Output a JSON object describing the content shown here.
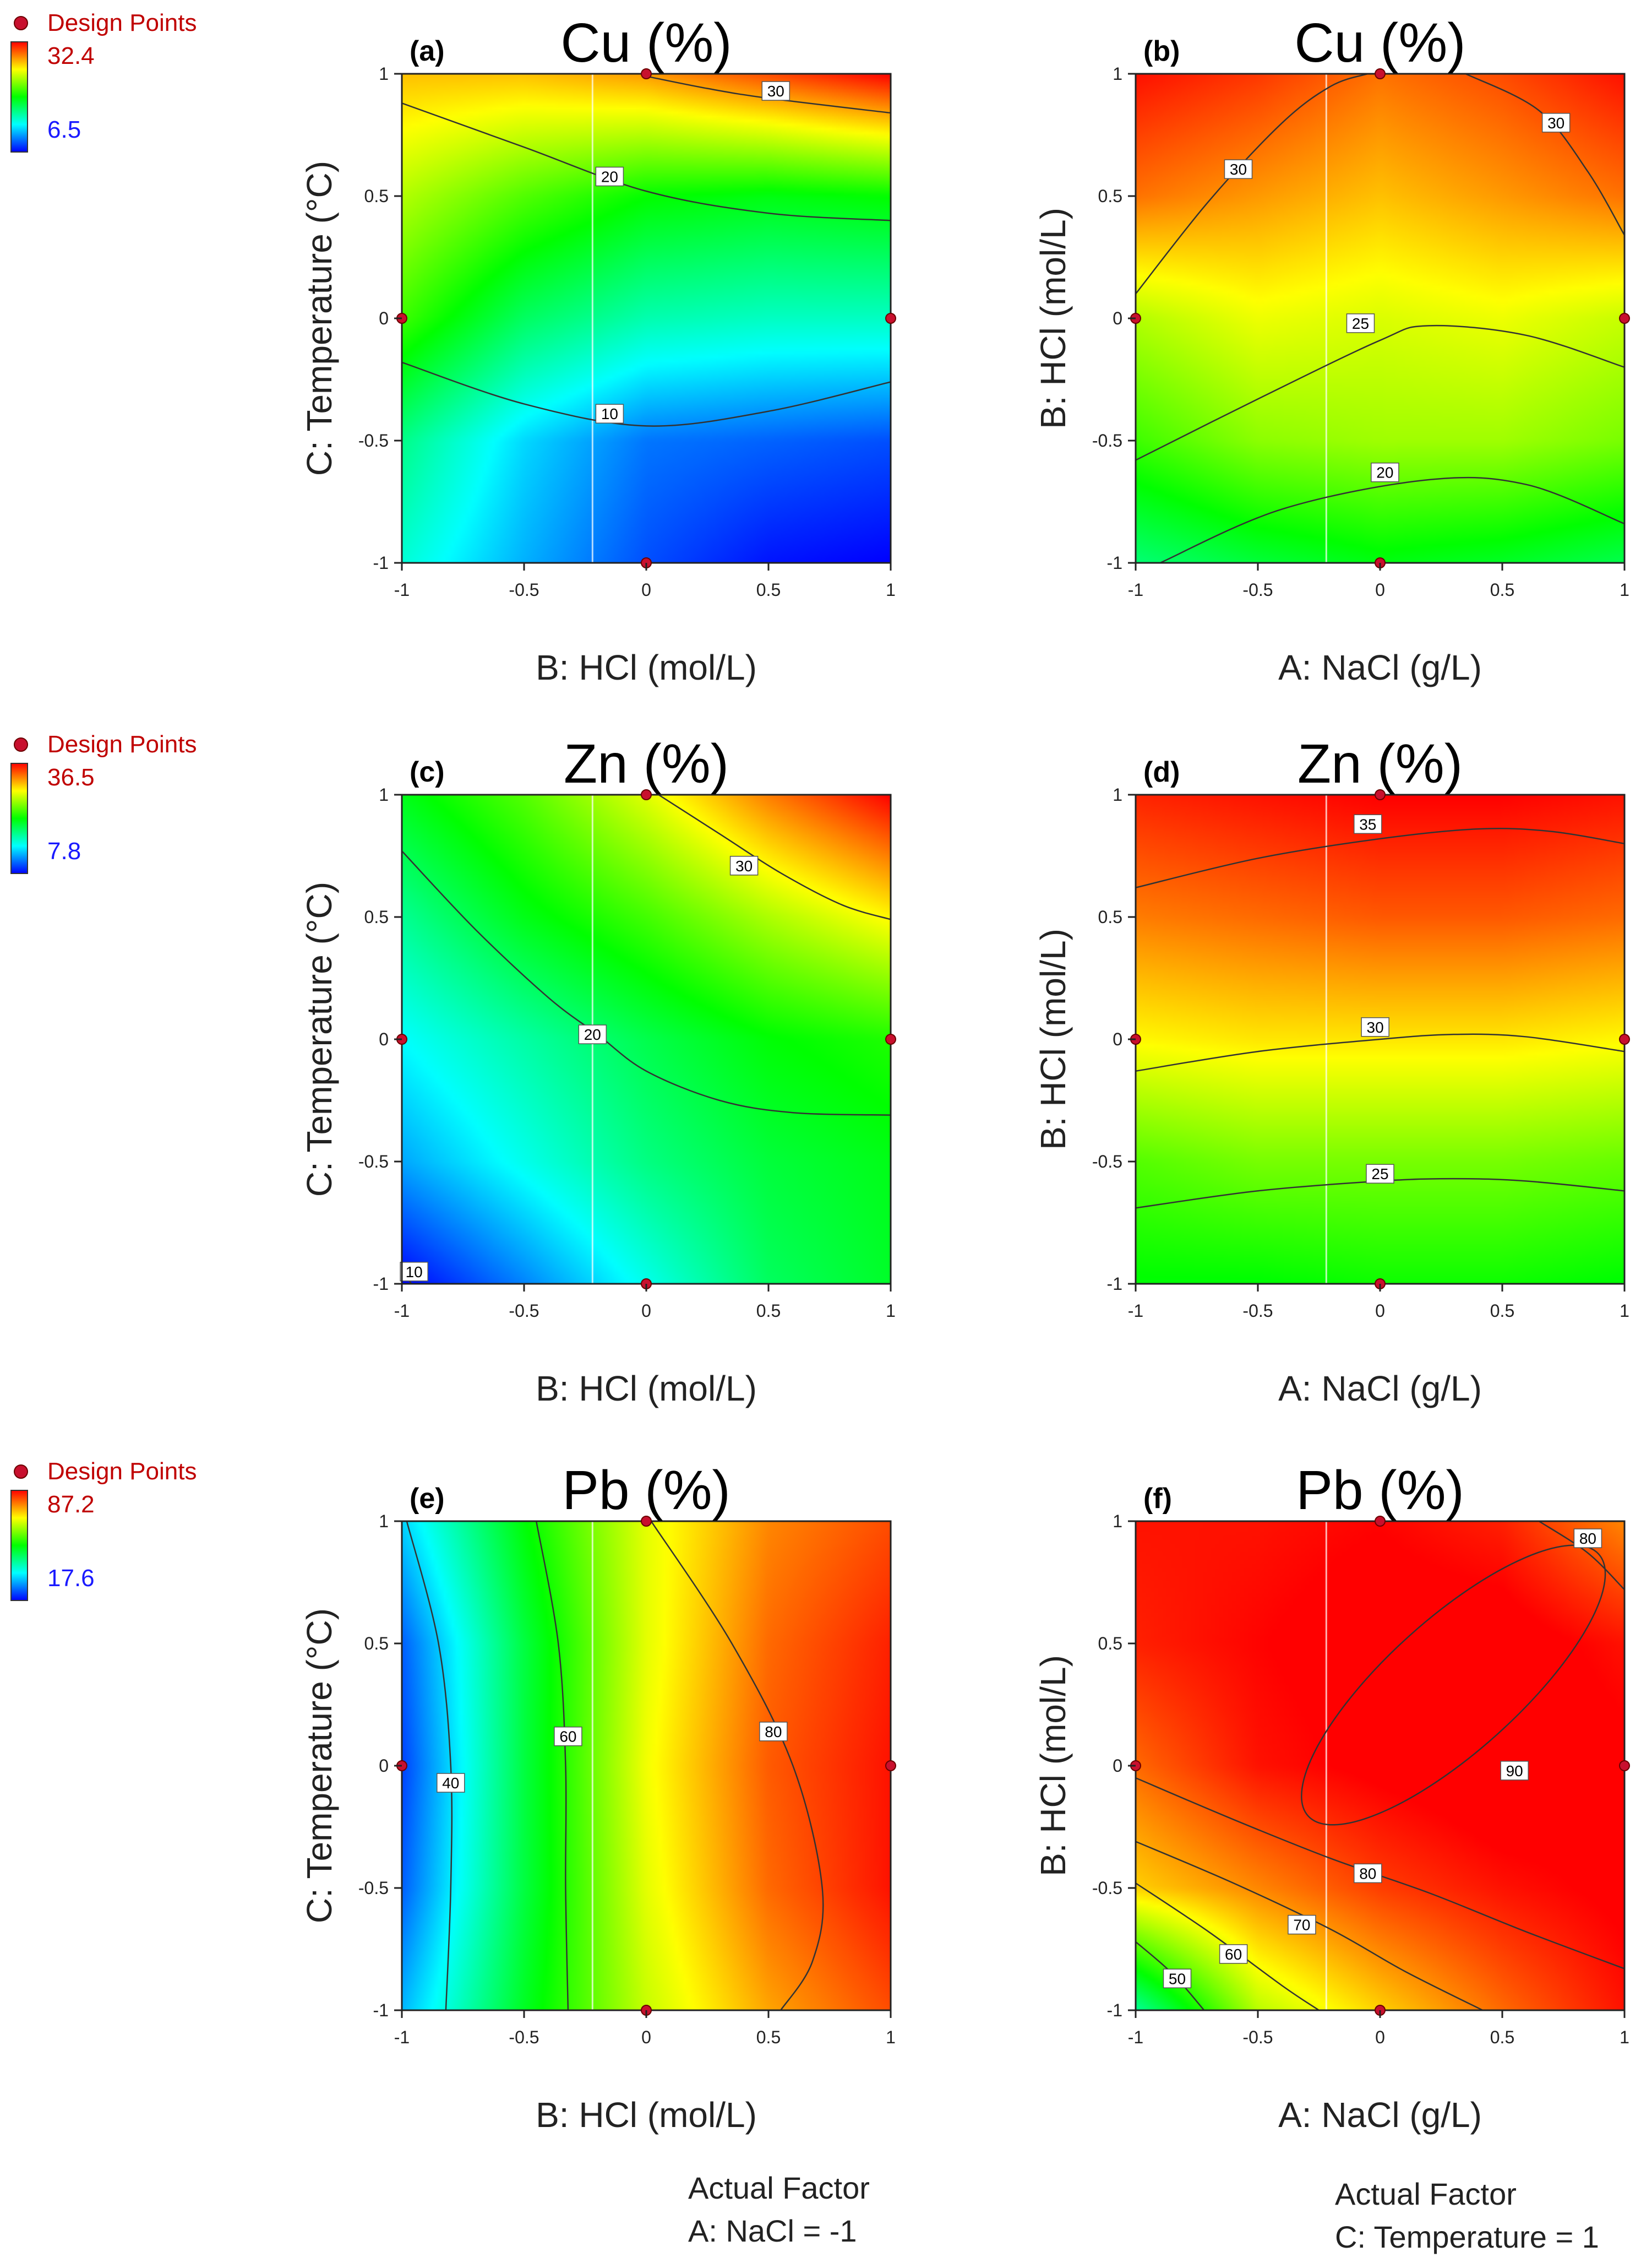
{
  "figure": {
    "footnotes": [
      {
        "line1": "Actual Factor",
        "line2": "A: NaCl = -1"
      },
      {
        "line1": "Actual Factor",
        "line2": "C: Temperature = 1"
      }
    ]
  },
  "legends": [
    {
      "title": "Design Points",
      "max": "32.4",
      "min": "6.5"
    },
    {
      "title": "Design Points",
      "max": "36.5",
      "min": "7.8"
    },
    {
      "title": "Design Points",
      "max": "87.2",
      "min": "17.6"
    }
  ],
  "chart_data": [
    {
      "type": "heatmap",
      "panel": "(a)",
      "title": "Cu (%)",
      "xlabel": "B: HCl (mol/L)",
      "ylabel": "C: Temperature (°C)",
      "xlim": [
        -1,
        1
      ],
      "ylim": [
        -1,
        1
      ],
      "xticks": [
        "-1",
        "-0.5",
        "0",
        "0.5",
        "1"
      ],
      "yticks": [
        "-1",
        "-0.5",
        "0",
        "0.5",
        "1"
      ],
      "color_range": [
        6.5,
        32.4
      ],
      "grid": [
        [
          14.0,
          11.0,
          8.5,
          7.0,
          6.5
        ],
        [
          16.0,
          12.0,
          9.5,
          9.0,
          8.5
        ],
        [
          21.0,
          17.0,
          15.0,
          14.5,
          14.5
        ],
        [
          24.0,
          21.5,
          19.5,
          19.0,
          19.5
        ],
        [
          27.5,
          27.5,
          28.5,
          30.5,
          32.4
        ]
      ],
      "contours": [
        {
          "label": "10",
          "x": [
            -1,
            -0.5,
            0,
            0.5,
            1
          ],
          "y": [
            -0.18,
            -0.35,
            -0.44,
            -0.38,
            -0.26
          ],
          "label_at": [
            -0.15,
            -0.39
          ]
        },
        {
          "label": "20",
          "x": [
            -1,
            -0.5,
            0,
            0.5,
            1
          ],
          "y": [
            0.88,
            0.7,
            0.52,
            0.43,
            0.4
          ],
          "label_at": [
            -0.15,
            0.58
          ]
        },
        {
          "label": "30",
          "x": [
            0,
            0.25,
            0.5,
            1
          ],
          "y": [
            0.99,
            0.94,
            0.9,
            0.84
          ],
          "label_at": [
            0.53,
            0.93
          ]
        }
      ],
      "design_points": [
        [
          0,
          1
        ],
        [
          -1,
          0
        ],
        [
          1,
          0
        ],
        [
          0,
          -1
        ]
      ],
      "marker_x": -0.22
    },
    {
      "type": "heatmap",
      "panel": "(b)",
      "title": "Cu (%)",
      "xlabel": "A: NaCl (g/L)",
      "ylabel": "B: HCl (mol/L)",
      "xlim": [
        -1,
        1
      ],
      "ylim": [
        -1,
        1
      ],
      "xticks": [
        "-1",
        "-0.5",
        "0",
        "0.5",
        "1"
      ],
      "yticks": [
        "-1",
        "-0.5",
        "0",
        "0.5",
        "1"
      ],
      "color_range": [
        6.5,
        32.4
      ],
      "grid": [
        [
          16.5,
          18.0,
          19.0,
          18.5,
          17.5
        ],
        [
          21.0,
          23.0,
          23.5,
          23.5,
          22.5
        ],
        [
          24.0,
          25.5,
          25.0,
          25.5,
          24.5
        ],
        [
          29.5,
          28.5,
          27.5,
          28.5,
          29.5
        ],
        [
          32.0,
          31.0,
          29.5,
          30.5,
          32.0
        ]
      ],
      "contours": [
        {
          "label": "20",
          "x": [
            -0.9,
            -0.4,
            0.2,
            0.6,
            1
          ],
          "y": [
            -1,
            -0.78,
            -0.66,
            -0.68,
            -0.84
          ],
          "label_at": [
            0.02,
            -0.63
          ]
        },
        {
          "label": "25",
          "x": [
            -1,
            -0.5,
            0,
            0.2,
            0.6,
            1
          ],
          "y": [
            -0.58,
            -0.33,
            -0.09,
            -0.03,
            -0.07,
            -0.2
          ],
          "label_at": [
            -0.08,
            -0.02
          ]
        },
        {
          "label": "30",
          "x": [
            -1,
            -0.7,
            -0.4,
            -0.2,
            -0.05
          ],
          "y": [
            0.1,
            0.48,
            0.8,
            0.95,
            1
          ],
          "label_at": [
            -0.58,
            0.61
          ]
        },
        {
          "label": "30",
          "x": [
            0.35,
            0.65,
            0.85,
            1
          ],
          "y": [
            1,
            0.85,
            0.6,
            0.34
          ],
          "label_at": [
            0.72,
            0.8
          ]
        }
      ],
      "design_points": [
        [
          0,
          1
        ],
        [
          -1,
          0
        ],
        [
          1,
          0
        ],
        [
          0,
          -1
        ]
      ],
      "marker_x": -0.22
    },
    {
      "type": "heatmap",
      "panel": "(c)",
      "title": "Zn (%)",
      "xlabel": "B: HCl (mol/L)",
      "ylabel": "C: Temperature (°C)",
      "xlim": [
        -1,
        1
      ],
      "ylim": [
        -1,
        1
      ],
      "xticks": [
        "-1",
        "-0.5",
        "0",
        "0.5",
        "1"
      ],
      "yticks": [
        "-1",
        "-0.5",
        "0",
        "0.5",
        "1"
      ],
      "color_range": [
        7.8,
        36.5
      ],
      "grid": [
        [
          7.8,
          11.5,
          15.5,
          19.5,
          21.0
        ],
        [
          12.5,
          15.5,
          18.5,
          20.5,
          21.5
        ],
        [
          15.0,
          17.5,
          20.0,
          22.0,
          23.0
        ],
        [
          18.0,
          21.5,
          24.0,
          27.0,
          29.5
        ],
        [
          21.5,
          24.5,
          28.5,
          33.0,
          36.5
        ]
      ],
      "contours": [
        {
          "label": "10",
          "x": [
            -1,
            -0.96
          ],
          "y": [
            -0.95,
            -1
          ],
          "label_at": [
            -0.95,
            -0.95
          ]
        },
        {
          "label": "20",
          "x": [
            -1,
            -0.7,
            -0.4,
            -0.2,
            0,
            0.3,
            0.6,
            1
          ],
          "y": [
            0.77,
            0.45,
            0.17,
            0.02,
            -0.13,
            -0.25,
            -0.3,
            -0.31
          ],
          "label_at": [
            -0.22,
            0.02
          ]
        },
        {
          "label": "30",
          "x": [
            0.05,
            0.3,
            0.55,
            0.8,
            1
          ],
          "y": [
            1,
            0.84,
            0.68,
            0.55,
            0.49
          ],
          "label_at": [
            0.4,
            0.71
          ]
        }
      ],
      "design_points": [
        [
          0,
          1
        ],
        [
          -1,
          0
        ],
        [
          1,
          0
        ],
        [
          0,
          -1
        ]
      ],
      "marker_x": -0.22
    },
    {
      "type": "heatmap",
      "panel": "(d)",
      "title": "Zn (%)",
      "xlabel": "A: NaCl (g/L)",
      "ylabel": "B: HCl (mol/L)",
      "xlim": [
        -1,
        1
      ],
      "ylim": [
        -1,
        1
      ],
      "xticks": [
        "-1",
        "-0.5",
        "0",
        "0.5",
        "1"
      ],
      "yticks": [
        "-1",
        "-0.5",
        "0",
        "0.5",
        "1"
      ],
      "color_range": [
        7.8,
        36.5
      ],
      "grid": [
        [
          22.0,
          22.0,
          22.5,
          22.5,
          22.0
        ],
        [
          24.5,
          25.5,
          25.5,
          25.5,
          25.0
        ],
        [
          29.5,
          30.0,
          30.0,
          30.0,
          29.5
        ],
        [
          33.0,
          33.5,
          34.0,
          34.0,
          33.5
        ],
        [
          35.5,
          36.0,
          36.5,
          36.5,
          36.0
        ]
      ],
      "contours": [
        {
          "label": "25",
          "x": [
            -1,
            -0.5,
            0,
            0.3,
            0.6,
            1
          ],
          "y": [
            -0.69,
            -0.62,
            -0.58,
            -0.57,
            -0.58,
            -0.62
          ],
          "label_at": [
            0,
            -0.55
          ]
        },
        {
          "label": "30",
          "x": [
            -1,
            -0.5,
            0,
            0.3,
            0.6,
            1
          ],
          "y": [
            -0.13,
            -0.05,
            0,
            0.02,
            0.01,
            -0.05
          ],
          "label_at": [
            -0.02,
            0.05
          ]
        },
        {
          "label": "35",
          "x": [
            -1,
            -0.5,
            0,
            0.4,
            0.7,
            1
          ],
          "y": [
            0.62,
            0.74,
            0.82,
            0.86,
            0.85,
            0.8
          ],
          "label_at": [
            -0.05,
            0.88
          ]
        }
      ],
      "design_points": [
        [
          0,
          1
        ],
        [
          -1,
          0
        ],
        [
          1,
          0
        ],
        [
          0,
          -1
        ]
      ],
      "marker_x": -0.22
    },
    {
      "type": "heatmap",
      "panel": "(e)",
      "title": "Pb (%)",
      "xlabel": "B: HCl (mol/L)",
      "ylabel": "C: Temperature (°C)",
      "xlim": [
        -1,
        1
      ],
      "ylim": [
        -1,
        1
      ],
      "xticks": [
        "-1",
        "-0.5",
        "0",
        "0.5",
        "1"
      ],
      "yticks": [
        "-1",
        "-0.5",
        "0",
        "0.5",
        "1"
      ],
      "color_range": [
        17.6,
        87.2
      ],
      "grid": [
        [
          30.0,
          50.0,
          66.0,
          76.0,
          82.0
        ],
        [
          24.0,
          48.0,
          68.0,
          80.0,
          86.0
        ],
        [
          22.0,
          48.0,
          69.0,
          81.0,
          86.0
        ],
        [
          24.0,
          48.0,
          68.0,
          80.0,
          85.0
        ],
        [
          32.0,
          52.0,
          68.0,
          78.0,
          82.0
        ]
      ],
      "contours": [
        {
          "label": "40",
          "x": [
            -0.98,
            -0.85,
            -0.8,
            -0.8,
            -0.82
          ],
          "y": [
            1,
            0.5,
            0,
            -0.5,
            -1
          ],
          "label_at": [
            -0.8,
            -0.07
          ]
        },
        {
          "label": "60",
          "x": [
            -0.45,
            -0.36,
            -0.33,
            -0.33,
            -0.32
          ],
          "y": [
            1,
            0.5,
            0,
            -0.5,
            -1
          ],
          "label_at": [
            -0.32,
            0.12
          ]
        },
        {
          "label": "80",
          "x": [
            0.02,
            0.35,
            0.6,
            0.72,
            0.68,
            0.55
          ],
          "y": [
            1,
            0.5,
            0,
            -0.5,
            -0.8,
            -1
          ],
          "label_at": [
            0.52,
            0.14
          ]
        }
      ],
      "design_points": [
        [
          0,
          1
        ],
        [
          -1,
          0
        ],
        [
          1,
          0
        ],
        [
          0,
          -1
        ]
      ],
      "marker_x": -0.22
    },
    {
      "type": "heatmap",
      "panel": "(f)",
      "title": "Pb (%)",
      "xlabel": "A: NaCl (g/L)",
      "ylabel": "B: HCl (mol/L)",
      "xlim": [
        -1,
        1
      ],
      "ylim": [
        -1,
        1
      ],
      "xticks": [
        "-1",
        "-0.5",
        "0",
        "0.5",
        "1"
      ],
      "yticks": [
        "-1",
        "-0.5",
        "0",
        "0.5",
        "1"
      ],
      "color_range": [
        17.6,
        87.2
      ],
      "grid": [
        [
          42.0,
          65.0,
          73.0,
          80.0,
          86.0
        ],
        [
          73.0,
          78.0,
          83.0,
          86.0,
          88.0
        ],
        [
          80.0,
          86.0,
          88.0,
          90.0,
          88.0
        ],
        [
          85.0,
          87.0,
          89.0,
          89.0,
          86.0
        ],
        [
          86.0,
          86.0,
          87.0,
          85.0,
          78.0
        ]
      ],
      "contours": [
        {
          "label": "50",
          "x": [
            -1,
            -0.85,
            -0.72
          ],
          "y": [
            -0.72,
            -0.85,
            -1
          ],
          "label_at": [
            -0.83,
            -0.87
          ]
        },
        {
          "label": "60",
          "x": [
            -1,
            -0.7,
            -0.4,
            -0.25
          ],
          "y": [
            -0.48,
            -0.68,
            -0.9,
            -1
          ],
          "label_at": [
            -0.6,
            -0.77
          ]
        },
        {
          "label": "70",
          "x": [
            -1,
            -0.6,
            -0.2,
            0.1,
            0.42
          ],
          "y": [
            -0.31,
            -0.48,
            -0.67,
            -0.84,
            -1
          ],
          "label_at": [
            -0.32,
            -0.65
          ]
        },
        {
          "label": "80",
          "x": [
            -1,
            -0.6,
            -0.2,
            0.2,
            0.6,
            1
          ],
          "y": [
            -0.05,
            -0.22,
            -0.38,
            -0.52,
            -0.68,
            -0.83
          ],
          "label_at": [
            -0.05,
            -0.44
          ]
        },
        {
          "label": "80",
          "x": [
            0.65,
            0.85,
            1
          ],
          "y": [
            1,
            0.87,
            0.72
          ],
          "label_at": [
            0.85,
            0.93
          ]
        },
        {
          "ellipse": {
            "cx": 0.3,
            "cy": 0.33,
            "rx": 0.8,
            "ry": 0.27,
            "angle": -42
          },
          "label": "90",
          "label_at": [
            0.55,
            -0.02
          ]
        }
      ],
      "design_points": [
        [
          0,
          1
        ],
        [
          -1,
          0
        ],
        [
          1,
          0
        ],
        [
          0,
          -1
        ]
      ],
      "marker_x": -0.22
    }
  ]
}
